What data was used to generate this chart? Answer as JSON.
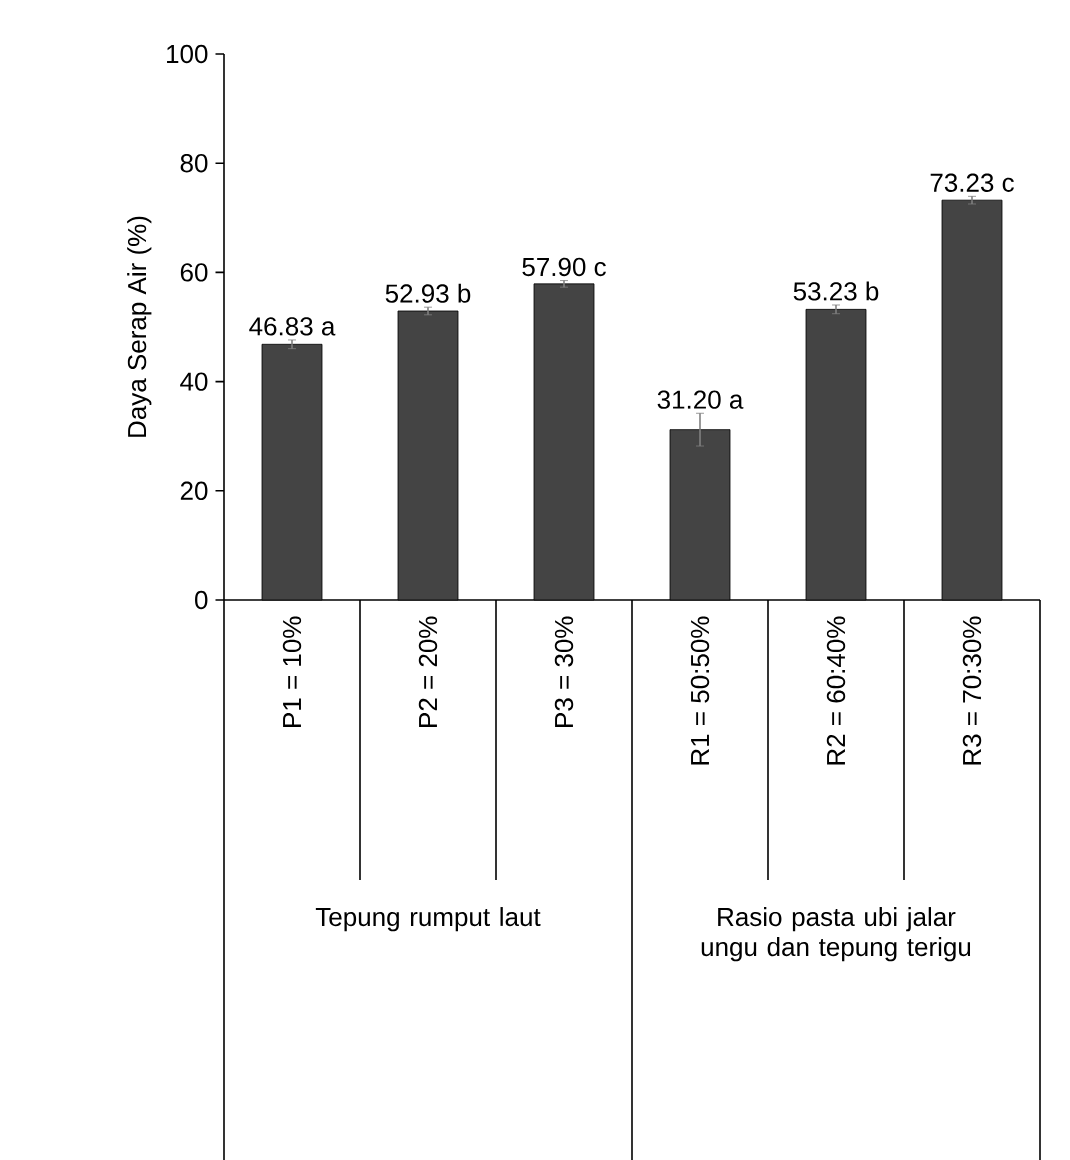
{
  "chart_data": {
    "type": "bar",
    "ylabel": "Daya Serap Air (%)",
    "categories": [
      "P1 = 10%",
      "P2 = 20%",
      "P3 = 30%",
      "R1 = 50:50%",
      "R2 = 60:40%",
      "R3 = 70:30%"
    ],
    "values": [
      46.83,
      52.93,
      57.9,
      31.2,
      53.23,
      73.23
    ],
    "errors": [
      0.8,
      0.7,
      0.6,
      3,
      0.8,
      0.7
    ],
    "value_labels": [
      "46.83 a",
      "52.93 b",
      "57.90 c",
      "31.20 a",
      "53.23 b",
      "73.23 c"
    ],
    "color": "#444444",
    "ylim": [
      0,
      100
    ],
    "yticks": [
      0,
      20,
      40,
      60,
      80,
      100
    ],
    "annotations": [
      "Tepung rumput laut",
      "Rasio pasta ubi jalar ungu dan tepung terigu"
    ]
  }
}
